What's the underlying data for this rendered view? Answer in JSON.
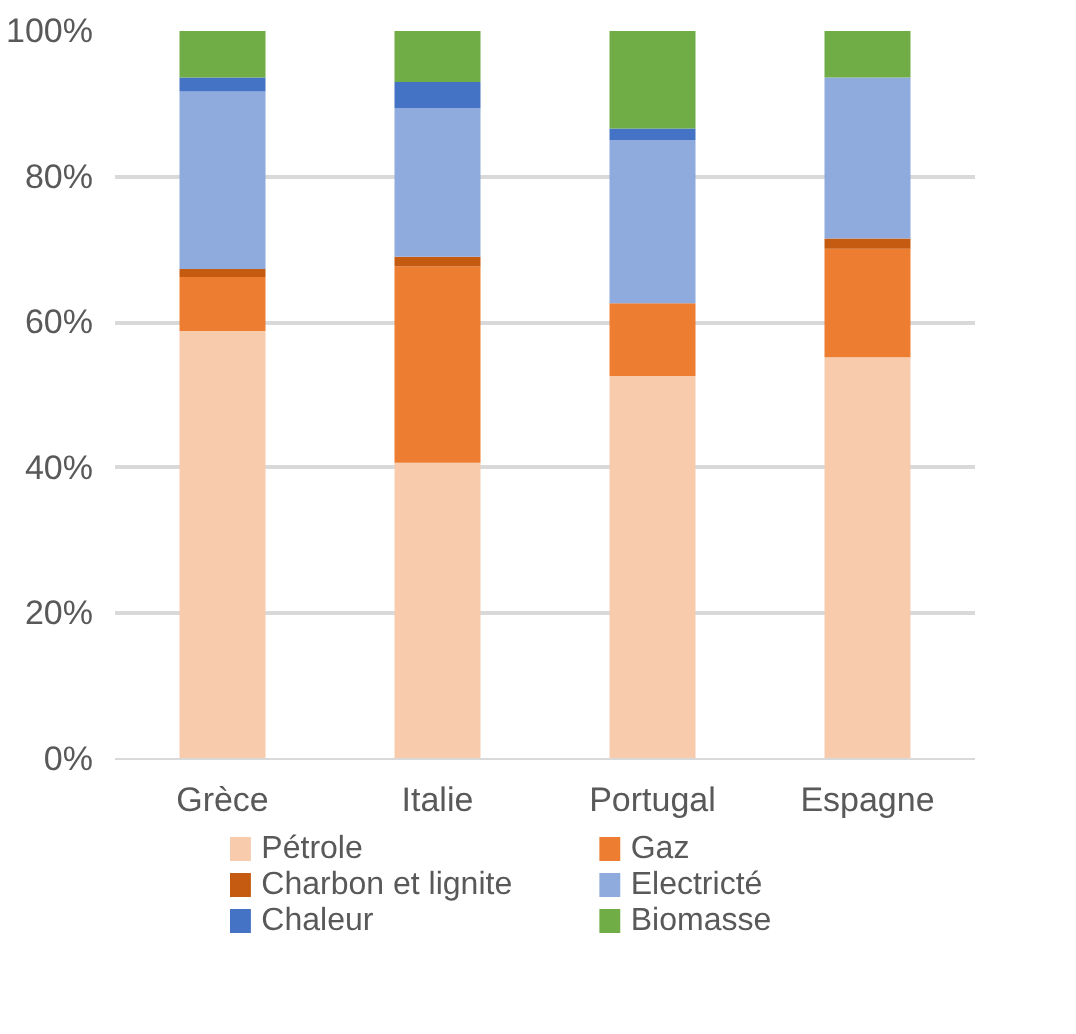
{
  "chart_data": {
    "type": "bar",
    "stacked": true,
    "categories": [
      "Grèce",
      "Italie",
      "Portugal",
      "Espagne"
    ],
    "series": [
      {
        "name": "Pétrole",
        "color": "#f8cbad",
        "values": [
          58.8,
          40.7,
          52.6,
          55.2
        ]
      },
      {
        "name": "Gaz",
        "color": "#ed7d31",
        "values": [
          7.4,
          27.0,
          10.0,
          14.9
        ]
      },
      {
        "name": "Charbon et lignite",
        "color": "#c55a11",
        "values": [
          1.1,
          1.3,
          0,
          1.4
        ]
      },
      {
        "name": "Electricté",
        "color": "#8faadc",
        "values": [
          24.4,
          20.4,
          22.4,
          22.1
        ]
      },
      {
        "name": "Chaleur",
        "color": "#4472c4",
        "values": [
          1.9,
          3.6,
          1.6,
          0
        ]
      },
      {
        "name": "Biomasse",
        "color": "#70ad47",
        "values": [
          6.4,
          7.0,
          13.4,
          6.4
        ]
      }
    ],
    "ylim": [
      0,
      100
    ],
    "yticks": [
      {
        "value": 0,
        "label": "0%"
      },
      {
        "value": 20,
        "label": "20%"
      },
      {
        "value": 40,
        "label": "40%"
      },
      {
        "value": 60,
        "label": "60%"
      },
      {
        "value": 80,
        "label": "80%"
      },
      {
        "value": 100,
        "label": "100%"
      }
    ],
    "grid": "y",
    "legend": "bottom"
  }
}
